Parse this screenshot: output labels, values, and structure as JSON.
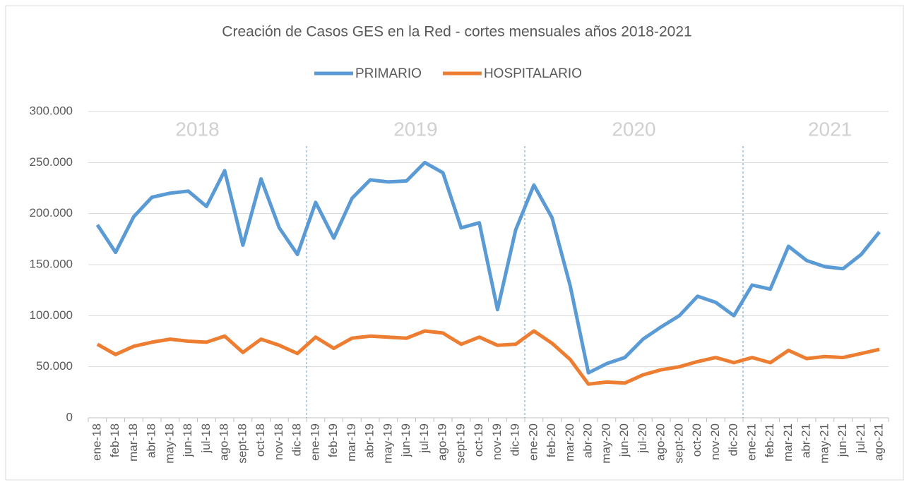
{
  "chart_data": {
    "type": "line",
    "title": "Creación de Casos GES en la Red - cortes mensuales años 2018-2021",
    "annotations": [
      "2018",
      "2019",
      "2020",
      "2021"
    ],
    "categories": [
      "ene-18",
      "feb-18",
      "mar-18",
      "abr-18",
      "may-18",
      "jun-18",
      "jul-18",
      "ago-18",
      "sept-18",
      "oct-18",
      "nov-18",
      "dic-18",
      "ene-19",
      "feb-19",
      "mar-19",
      "abr-19",
      "may-19",
      "jun-19",
      "jul-19",
      "ago-19",
      "sept-19",
      "oct-19",
      "nov-19",
      "dic-19",
      "ene-20",
      "feb-20",
      "mar-20",
      "abr-20",
      "may-20",
      "jun-20",
      "jul-20",
      "ago-20",
      "sept-20",
      "oct-20",
      "nov-20",
      "dic-20",
      "ene-21",
      "feb-21",
      "mar-21",
      "abr-21",
      "may-21",
      "jun-21",
      "jul-21",
      "ago-21"
    ],
    "series": [
      {
        "name": "PRIMARIO",
        "color": "#5b9bd5",
        "values": [
          189000,
          162000,
          197000,
          216000,
          220000,
          222000,
          207000,
          242000,
          169000,
          234000,
          186000,
          160000,
          211000,
          176000,
          215000,
          233000,
          231000,
          232000,
          250000,
          240000,
          186000,
          191000,
          106000,
          184000,
          228000,
          196000,
          129000,
          44000,
          53000,
          59000,
          77000,
          89000,
          100000,
          119000,
          113000,
          100000,
          130000,
          126000,
          168000,
          154000,
          148000,
          146000,
          160000,
          182000
        ]
      },
      {
        "name": "HOSPITALARIO",
        "color": "#ed7d31",
        "values": [
          72000,
          62000,
          70000,
          74000,
          77000,
          75000,
          74000,
          80000,
          64000,
          77000,
          71000,
          63000,
          79000,
          68000,
          78000,
          80000,
          79000,
          78000,
          85000,
          83000,
          72000,
          79000,
          71000,
          72000,
          85000,
          73000,
          57000,
          33000,
          35000,
          34000,
          42000,
          47000,
          50000,
          55000,
          59000,
          54000,
          59000,
          54000,
          66000,
          58000,
          60000,
          59000,
          63000,
          67000
        ]
      }
    ],
    "ylim": [
      0,
      300000
    ],
    "yticks": [
      0,
      {
        "value": 50000,
        "label": "50.000"
      },
      {
        "value": 100000,
        "label": "100.000"
      },
      {
        "value": 150000,
        "label": "150.000"
      },
      {
        "value": 200000,
        "label": "200.000"
      },
      {
        "value": 250000,
        "label": "250.000"
      },
      {
        "value": 300000,
        "label": "300.000"
      }
    ],
    "grid": true,
    "legend": "top"
  }
}
